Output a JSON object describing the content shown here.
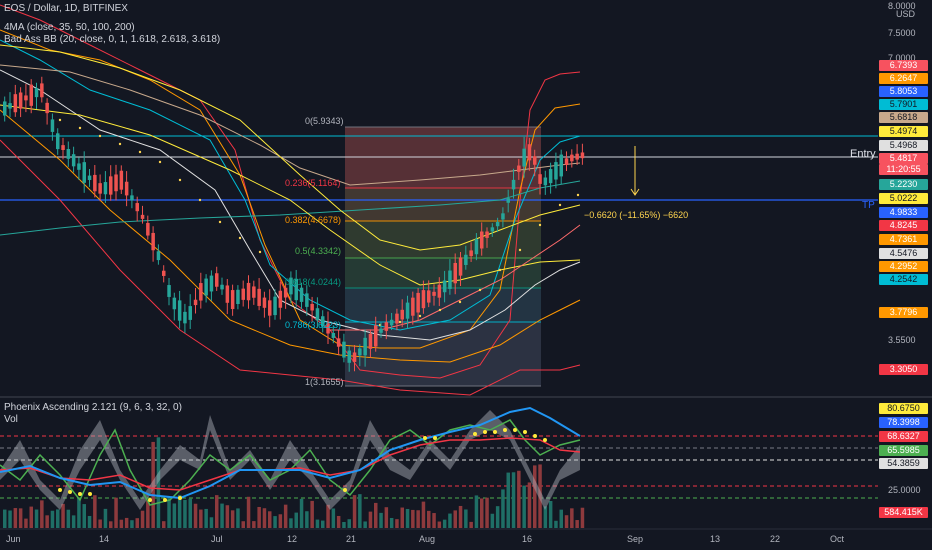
{
  "header": {
    "symbol": "EOS / Dollar, 1D, BITFINEX",
    "ma": "4MA (close, 35, 50, 100, 200)",
    "bands": "Bad Ass BB (20, close, 0, 1, 1.618, 2.618, 3.618)",
    "oscillator": "Phoenix Ascending 2.121 (9, 6, 3, 32, 0)",
    "vol": "Vol"
  },
  "currency": "USD",
  "price_axis": [
    "8.0000",
    "7.5000",
    "7.0000",
    "3.5500"
  ],
  "price_tags": [
    {
      "text": "6.7393",
      "color": "#f7525f"
    },
    {
      "text": "6.2647",
      "color": "#ff9800"
    },
    {
      "text": "5.8053",
      "color": "#2962ff"
    },
    {
      "text": "5.7901",
      "color": "#00bcd4"
    },
    {
      "text": "5.6818",
      "color": "#c8a98c"
    },
    {
      "text": "5.4974",
      "color": "#ffeb3b"
    },
    {
      "text": "5.4968",
      "color": "#e0e0e0"
    },
    {
      "text": "5.4817",
      "color": "#f7525f"
    },
    {
      "text": "11:20:55",
      "color": "#f7525f"
    },
    {
      "text": "5.2230",
      "color": "#26a69a"
    },
    {
      "text": "5.0222",
      "color": "#ffeb3b"
    },
    {
      "text": "4.9833",
      "color": "#2962ff"
    },
    {
      "text": "4.8245",
      "color": "#f23645"
    },
    {
      "text": "4.7361",
      "color": "#ff9800"
    },
    {
      "text": "4.5476",
      "color": "#e0e0e0"
    },
    {
      "text": "4.2952",
      "color": "#ff9800"
    },
    {
      "text": "4.2542",
      "color": "#00bcd4"
    },
    {
      "text": "3.7796",
      "color": "#ff9800"
    },
    {
      "text": "3.3050",
      "color": "#f23645"
    }
  ],
  "fib": [
    {
      "label": "0(5.9343)"
    },
    {
      "label": "0.236(5.1164)"
    },
    {
      "label": "0.382(4.6678)"
    },
    {
      "label": "0.5(4.3342)"
    },
    {
      "label": "0.618(4.0244)"
    },
    {
      "label": "0.786(3.6223)"
    },
    {
      "label": "1(3.1655)"
    }
  ],
  "annotations": {
    "entry": "Entry",
    "tp": "TP",
    "measure": "−0.6620 (−11.65%) −6620"
  },
  "osc_tags": [
    {
      "text": "80.6750",
      "color": "#ffeb3b"
    },
    {
      "text": "78.3998",
      "color": "#2962ff"
    },
    {
      "text": "68.6327",
      "color": "#f23645"
    },
    {
      "text": "65.5985",
      "color": "#4caf50"
    },
    {
      "text": "54.3859",
      "color": "#e0e0e0"
    },
    {
      "text": "584.415K",
      "color": "#f23645"
    }
  ],
  "osc_axis": [
    "25.0000"
  ],
  "time_axis": [
    "Jun",
    "14",
    "Jul",
    "12",
    "21",
    "Aug",
    "16",
    "Sep",
    "13",
    "22",
    "Oct"
  ]
}
